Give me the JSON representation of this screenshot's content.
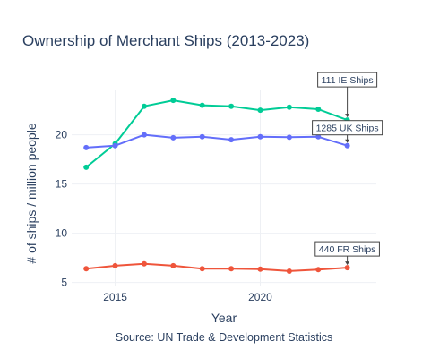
{
  "chart_data": {
    "type": "line",
    "title": "Ownership of Merchant Ships (2013-2023)",
    "xlabel": "Year",
    "ylabel": "# of ships / million people",
    "source": "Source: UN Trade & Development Statistics",
    "x": [
      2014,
      2015,
      2016,
      2017,
      2018,
      2019,
      2020,
      2021,
      2022,
      2023
    ],
    "xlim": [
      2013.5,
      2024
    ],
    "ylim": [
      4.6,
      24.6
    ],
    "x_ticks": [
      2015,
      2020
    ],
    "y_ticks": [
      5,
      10,
      15,
      20
    ],
    "grid": true,
    "legend": "none",
    "series": [
      {
        "color": "#00cc96",
        "values": [
          16.7,
          19.1,
          22.9,
          23.5,
          23.0,
          22.9,
          22.5,
          22.8,
          22.6,
          21.5
        ]
      },
      {
        "color": "#636efa",
        "values": [
          18.7,
          18.9,
          20.0,
          19.7,
          19.8,
          19.5,
          19.8,
          19.75,
          19.8,
          18.9
        ]
      },
      {
        "color": "#ef553b",
        "values": [
          6.4,
          6.7,
          6.9,
          6.7,
          6.4,
          6.4,
          6.35,
          6.15,
          6.3,
          6.5
        ]
      }
    ],
    "annotations": [
      {
        "text": "111 IE Ships",
        "x": 2023,
        "y": 21.5,
        "series": 0
      },
      {
        "text": "1285 UK Ships",
        "x": 2023,
        "y": 18.9,
        "series": 1
      },
      {
        "text": "440 FR Ships",
        "x": 2023,
        "y": 6.5,
        "series": 2
      }
    ]
  }
}
